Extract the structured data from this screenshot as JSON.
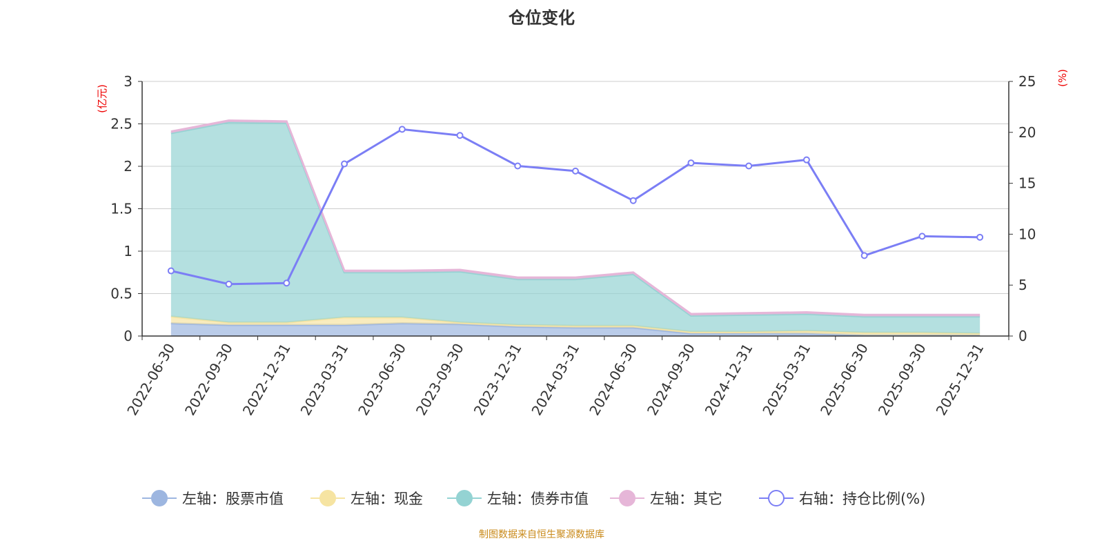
{
  "title": "仓位变化",
  "source": "制图数据来自恒生聚源数据库",
  "chart_data": {
    "type": "area",
    "title": "仓位变化",
    "categories": [
      "2022-06-30",
      "2022-09-30",
      "2022-12-31",
      "2023-03-31",
      "2023-06-30",
      "2023-09-30",
      "2023-12-31",
      "2024-03-31",
      "2024-06-30",
      "2024-09-30",
      "2024-12-31",
      "2025-03-31",
      "2025-06-30",
      "2025-09-30",
      "2025-12-31"
    ],
    "left_axis": {
      "label": "(亿元)",
      "range": [
        0,
        3
      ],
      "ticks": [
        "0",
        "0.5",
        "1",
        "1.5",
        "2",
        "2.5",
        "3"
      ]
    },
    "right_axis": {
      "label": "(%)",
      "range": [
        0,
        25
      ],
      "ticks": [
        "0",
        "5",
        "10",
        "15",
        "20",
        "25"
      ]
    },
    "grid": true,
    "legend_position": "bottom",
    "stacked_series": [
      {
        "name": "左轴：股票市值",
        "color": "#9db6e0",
        "values": [
          0.15,
          0.13,
          0.13,
          0.13,
          0.15,
          0.14,
          0.11,
          0.1,
          0.1,
          0.03,
          0.03,
          0.03,
          0.01,
          0.01,
          0.01
        ]
      },
      {
        "name": "左轴：现金",
        "color": "#f6e4a2",
        "values": [
          0.08,
          0.03,
          0.03,
          0.09,
          0.07,
          0.02,
          0.02,
          0.02,
          0.02,
          0.02,
          0.02,
          0.03,
          0.03,
          0.03,
          0.02
        ]
      },
      {
        "name": "左轴：债券市值",
        "color": "#94d3d3",
        "values": [
          2.16,
          2.36,
          2.35,
          0.53,
          0.53,
          0.6,
          0.54,
          0.55,
          0.61,
          0.19,
          0.2,
          0.2,
          0.19,
          0.19,
          0.2
        ]
      },
      {
        "name": "左轴：其它",
        "color": "#e6b6d8",
        "values": [
          0.02,
          0.02,
          0.02,
          0.02,
          0.02,
          0.02,
          0.02,
          0.02,
          0.02,
          0.02,
          0.02,
          0.02,
          0.02,
          0.02,
          0.02
        ]
      }
    ],
    "line_series": {
      "name": "右轴：持仓比例(%)",
      "color": "#7b7ef5",
      "values": [
        6.4,
        5.1,
        5.2,
        16.9,
        20.3,
        19.7,
        16.7,
        16.2,
        13.3,
        17.0,
        16.7,
        17.3,
        7.9,
        9.8,
        9.7
      ]
    }
  }
}
